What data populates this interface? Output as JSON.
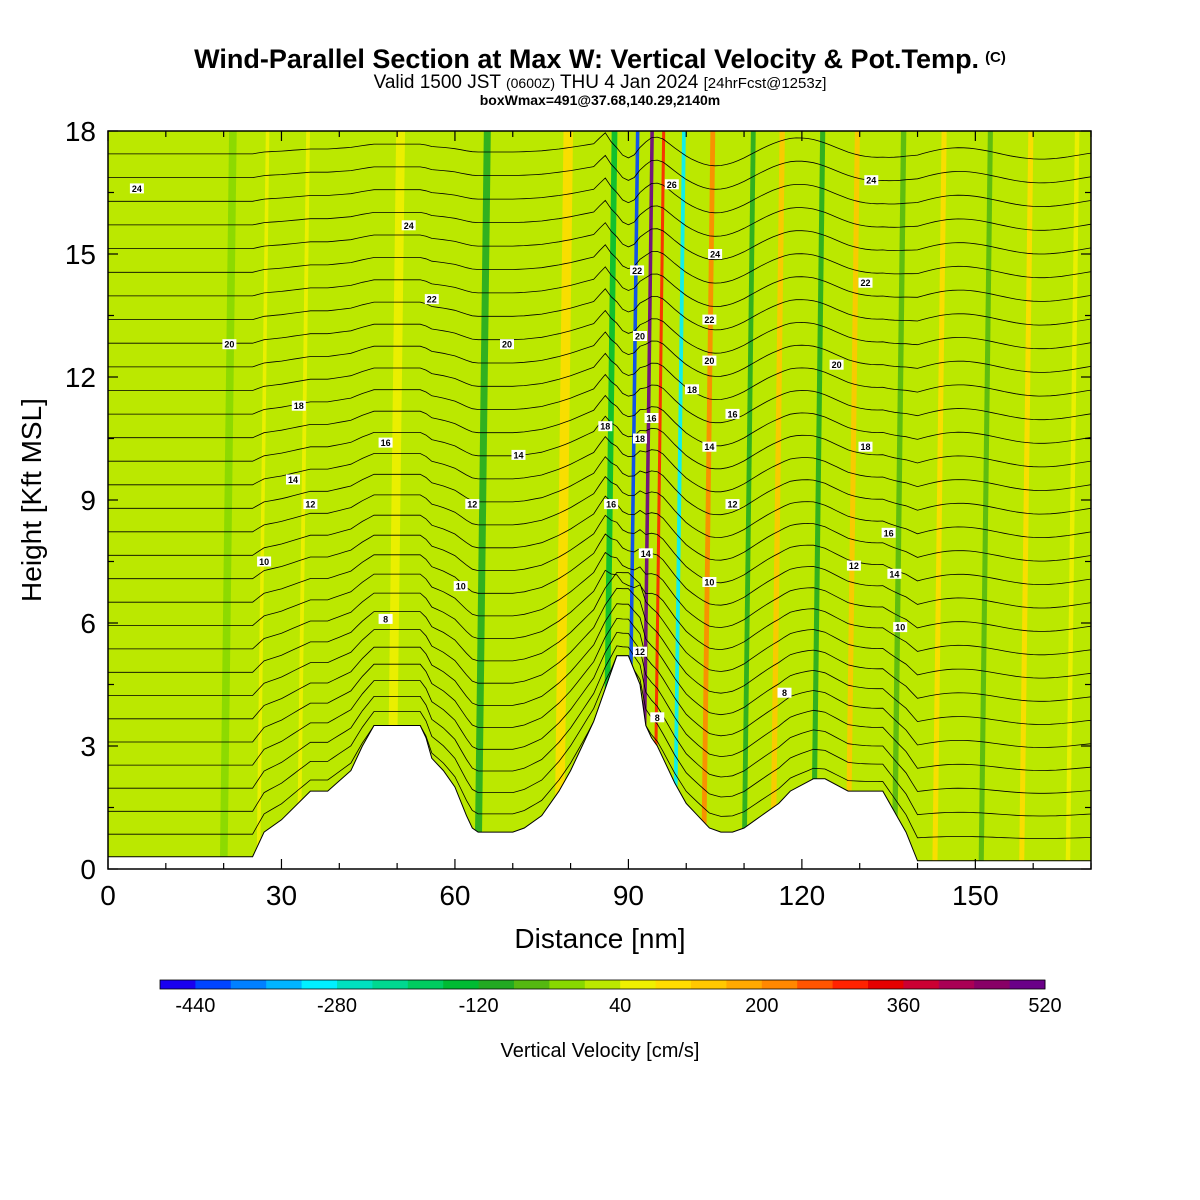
{
  "chart_data": {
    "type": "heatmap",
    "title": "Wind-Parallel Section at Max W: Vertical Velocity & Pot.Temp.",
    "title_mark": "(C)",
    "subtitle_a": "Valid 1500 JST",
    "subtitle_utc": "(0600Z)",
    "subtitle_b": "THU 4 Jan 2024",
    "subtitle_fcst": "[24hrFcst@1253z]",
    "subtitle2": "boxWmax=491@37.68,140.29,2140m",
    "xlabel": "Distance [nm]",
    "ylabel": "Height [Kft MSL]",
    "xlim": [
      0,
      170
    ],
    "ylim": [
      0,
      18
    ],
    "x_ticks": [
      "0",
      "30",
      "60",
      "90",
      "120",
      "150"
    ],
    "y_ticks": [
      "0",
      "3",
      "6",
      "9",
      "12",
      "15",
      "18"
    ],
    "terrain_x": [
      0,
      25,
      27,
      30,
      35,
      38,
      42,
      44,
      46,
      49,
      54,
      55,
      56,
      58,
      60,
      62,
      63,
      64,
      70,
      72,
      75,
      78,
      80,
      82,
      84,
      86,
      88,
      90,
      92,
      93,
      94,
      95,
      96,
      98,
      100,
      102,
      104,
      106,
      108,
      110,
      112,
      116,
      118,
      122,
      124,
      128,
      134,
      136,
      138,
      140,
      170
    ],
    "terrain_y": [
      0.3,
      0.3,
      0.9,
      1.2,
      1.9,
      1.9,
      2.4,
      3.0,
      3.5,
      3.5,
      3.5,
      3.2,
      2.7,
      2.4,
      2.0,
      1.3,
      1.0,
      0.9,
      0.9,
      1.0,
      1.3,
      1.9,
      2.4,
      3.0,
      3.6,
      4.4,
      5.2,
      5.2,
      4.5,
      3.5,
      3.2,
      3.0,
      2.7,
      2.1,
      1.6,
      1.3,
      1.0,
      0.9,
      0.9,
      1.0,
      1.2,
      1.6,
      1.9,
      2.2,
      2.2,
      1.9,
      1.9,
      1.4,
      0.9,
      0.2,
      0.2
    ],
    "velocity_bands": [
      {
        "x": 20,
        "w": 60,
        "v": -20
      },
      {
        "x": 26,
        "w": 28,
        "v": 40
      },
      {
        "x": 33,
        "w": 30,
        "v": 40
      },
      {
        "x": 49,
        "w": 70,
        "v": 60
      },
      {
        "x": 64,
        "w": 55,
        "v": -120
      },
      {
        "x": 78,
        "w": 75,
        "v": 80
      },
      {
        "x": 86,
        "w": 45,
        "v": -160
      },
      {
        "x": 90,
        "w": 28,
        "v": -440
      },
      {
        "x": 92.5,
        "w": 28,
        "v": 491
      },
      {
        "x": 94.5,
        "w": 24,
        "v": 280
      },
      {
        "x": 98,
        "w": 30,
        "v": -320
      },
      {
        "x": 103,
        "w": 38,
        "v": 200
      },
      {
        "x": 110,
        "w": 38,
        "v": -120
      },
      {
        "x": 115,
        "w": 42,
        "v": 120
      },
      {
        "x": 122,
        "w": 40,
        "v": -100
      },
      {
        "x": 128,
        "w": 40,
        "v": 120
      },
      {
        "x": 136,
        "w": 42,
        "v": -80
      },
      {
        "x": 143,
        "w": 40,
        "v": 100
      },
      {
        "x": 151,
        "w": 40,
        "v": -60
      },
      {
        "x": 158,
        "w": 40,
        "v": 80
      },
      {
        "x": 166,
        "w": 35,
        "v": 60
      }
    ],
    "contour_labels": [
      {
        "x": 5,
        "y": 16.6,
        "t": "24"
      },
      {
        "x": 52,
        "y": 15.7,
        "t": "24"
      },
      {
        "x": 56,
        "y": 13.9,
        "t": "22"
      },
      {
        "x": 21,
        "y": 12.8,
        "t": "20"
      },
      {
        "x": 69,
        "y": 12.8,
        "t": "20"
      },
      {
        "x": 33,
        "y": 11.3,
        "t": "18"
      },
      {
        "x": 48,
        "y": 10.4,
        "t": "16"
      },
      {
        "x": 32,
        "y": 9.5,
        "t": "14"
      },
      {
        "x": 35,
        "y": 8.9,
        "t": "12"
      },
      {
        "x": 27,
        "y": 7.5,
        "t": "10"
      },
      {
        "x": 48,
        "y": 6.1,
        "t": "8"
      },
      {
        "x": 71,
        "y": 10.1,
        "t": "14"
      },
      {
        "x": 63,
        "y": 8.9,
        "t": "12"
      },
      {
        "x": 61,
        "y": 6.9,
        "t": "10"
      },
      {
        "x": 86,
        "y": 10.8,
        "t": "18"
      },
      {
        "x": 87,
        "y": 8.9,
        "t": "16"
      },
      {
        "x": 91.5,
        "y": 14.6,
        "t": "22"
      },
      {
        "x": 92,
        "y": 13.0,
        "t": "20"
      },
      {
        "x": 92,
        "y": 10.5,
        "t": "18"
      },
      {
        "x": 94,
        "y": 11.0,
        "t": "16"
      },
      {
        "x": 93,
        "y": 7.7,
        "t": "14"
      },
      {
        "x": 92,
        "y": 5.3,
        "t": "12"
      },
      {
        "x": 95,
        "y": 3.7,
        "t": "8"
      },
      {
        "x": 97.5,
        "y": 16.7,
        "t": "26"
      },
      {
        "x": 105,
        "y": 15.0,
        "t": "24"
      },
      {
        "x": 104,
        "y": 13.4,
        "t": "22"
      },
      {
        "x": 104,
        "y": 12.4,
        "t": "20"
      },
      {
        "x": 101,
        "y": 11.7,
        "t": "18"
      },
      {
        "x": 108,
        "y": 11.1,
        "t": "16"
      },
      {
        "x": 104,
        "y": 10.3,
        "t": "14"
      },
      {
        "x": 108,
        "y": 8.9,
        "t": "12"
      },
      {
        "x": 104,
        "y": 7.0,
        "t": "10"
      },
      {
        "x": 117,
        "y": 4.3,
        "t": "8"
      },
      {
        "x": 132,
        "y": 16.8,
        "t": "24"
      },
      {
        "x": 131,
        "y": 14.3,
        "t": "22"
      },
      {
        "x": 126,
        "y": 12.3,
        "t": "20"
      },
      {
        "x": 131,
        "y": 10.3,
        "t": "18"
      },
      {
        "x": 135,
        "y": 8.2,
        "t": "16"
      },
      {
        "x": 129,
        "y": 7.4,
        "t": "12"
      },
      {
        "x": 136,
        "y": 7.2,
        "t": "14"
      },
      {
        "x": 137,
        "y": 5.9,
        "t": "10"
      }
    ]
  },
  "colorbar": {
    "title": "Vertical Velocity [cm/s]",
    "tick_labels": [
      "-440",
      "-280",
      "-120",
      "40",
      "200",
      "360",
      "520"
    ],
    "min": -480,
    "step": 40,
    "colors": [
      "#1a00f0",
      "#0044ff",
      "#0080ff",
      "#00b4ff",
      "#00f0ff",
      "#00e0c0",
      "#00d890",
      "#00cc60",
      "#00bb33",
      "#22aa22",
      "#55b811",
      "#88d800",
      "#bbe800",
      "#f0f000",
      "#ffdd00",
      "#ffc800",
      "#ffaa00",
      "#ff8800",
      "#ff5500",
      "#ff2200",
      "#e60000",
      "#cc0033",
      "#aa0055",
      "#880066",
      "#6a0088"
    ]
  }
}
